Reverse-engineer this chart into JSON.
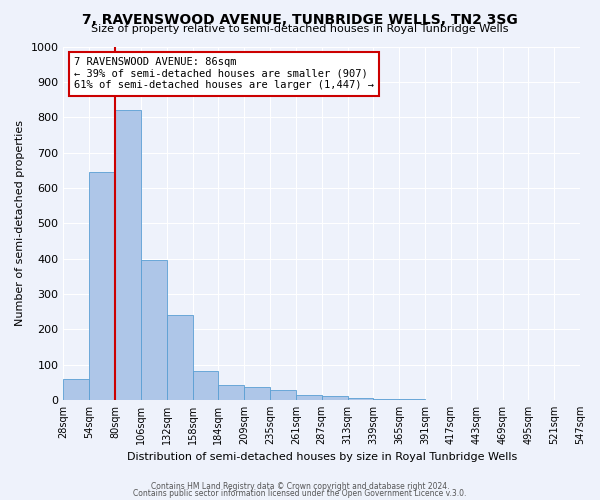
{
  "title": "7, RAVENSWOOD AVENUE, TUNBRIDGE WELLS, TN2 3SG",
  "subtitle": "Size of property relative to semi-detached houses in Royal Tunbridge Wells",
  "xlabel": "Distribution of semi-detached houses by size in Royal Tunbridge Wells",
  "ylabel": "Number of semi-detached properties",
  "bar_values": [
    60,
    645,
    820,
    395,
    240,
    83,
    42,
    38,
    27,
    15,
    10,
    5,
    3,
    2,
    1,
    1,
    0,
    0,
    1,
    0
  ],
  "bin_labels": [
    "28sqm",
    "54sqm",
    "80sqm",
    "106sqm",
    "132sqm",
    "158sqm",
    "184sqm",
    "209sqm",
    "235sqm",
    "261sqm",
    "287sqm",
    "313sqm",
    "339sqm",
    "365sqm",
    "391sqm",
    "417sqm",
    "443sqm",
    "469sqm",
    "495sqm",
    "521sqm",
    "547sqm"
  ],
  "bar_color": "#aec6e8",
  "bar_edge_color": "#5a9fd4",
  "vline_color": "#cc0000",
  "annotation_title": "7 RAVENSWOOD AVENUE: 86sqm",
  "annotation_line1": "← 39% of semi-detached houses are smaller (907)",
  "annotation_line2": "61% of semi-detached houses are larger (1,447) →",
  "annotation_box_color": "#ffffff",
  "annotation_box_edge": "#cc0000",
  "ylim": [
    0,
    1000
  ],
  "yticks": [
    0,
    100,
    200,
    300,
    400,
    500,
    600,
    700,
    800,
    900,
    1000
  ],
  "footer1": "Contains HM Land Registry data © Crown copyright and database right 2024.",
  "footer2": "Contains public sector information licensed under the Open Government Licence v.3.0.",
  "bg_color": "#eef2fb",
  "grid_color": "#ffffff"
}
